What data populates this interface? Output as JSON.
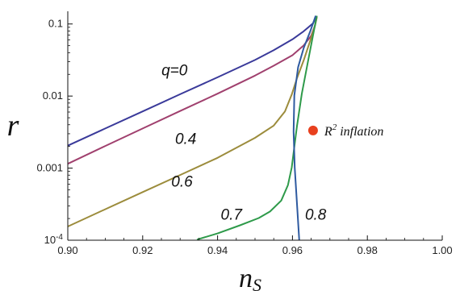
{
  "chart_data": {
    "type": "line",
    "title": "",
    "xlabel": "n",
    "xlabel_sub": "S",
    "ylabel": "r",
    "xlim": [
      0.9,
      1.0
    ],
    "ylim": [
      0.0001,
      0.15
    ],
    "y_scale": "log",
    "grid": false,
    "x_ticks": [
      {
        "value": 0.9,
        "label": "0.90"
      },
      {
        "value": 0.92,
        "label": "0.92"
      },
      {
        "value": 0.94,
        "label": "0.94"
      },
      {
        "value": 0.96,
        "label": "0.96"
      },
      {
        "value": 0.98,
        "label": "0.98"
      },
      {
        "value": 1.0,
        "label": "1.00"
      }
    ],
    "y_ticks": [
      {
        "value": 0.0001,
        "label": "10",
        "sup": "-4"
      },
      {
        "value": 0.001,
        "label": "0.001",
        "sup": ""
      },
      {
        "value": 0.01,
        "label": "0.01",
        "sup": ""
      },
      {
        "value": 0.1,
        "label": "0.1",
        "sup": ""
      }
    ],
    "series": [
      {
        "name": "q=0",
        "color": "#3a3a9a",
        "label": "q=0",
        "label_at": [
          0.9285,
          0.0193
        ],
        "points": [
          [
            0.9,
            0.00205
          ],
          [
            0.91,
            0.00355
          ],
          [
            0.92,
            0.00612
          ],
          [
            0.93,
            0.0106
          ],
          [
            0.94,
            0.0182
          ],
          [
            0.95,
            0.0317
          ],
          [
            0.955,
            0.0433
          ],
          [
            0.96,
            0.0613
          ],
          [
            0.963,
            0.0792
          ],
          [
            0.9655,
            0.1023
          ],
          [
            0.9665,
            0.128
          ]
        ]
      },
      {
        "name": "0.4",
        "color": "#a0406e",
        "label": "0.4",
        "label_at": [
          0.9315,
          0.00218
        ],
        "points": [
          [
            0.9,
            0.00115
          ],
          [
            0.91,
            0.00203
          ],
          [
            0.92,
            0.00355
          ],
          [
            0.93,
            0.0062
          ],
          [
            0.94,
            0.0108
          ],
          [
            0.95,
            0.0192
          ],
          [
            0.955,
            0.0264
          ],
          [
            0.96,
            0.0369
          ],
          [
            0.963,
            0.0504
          ],
          [
            0.965,
            0.0686
          ],
          [
            0.966,
            0.0943
          ],
          [
            0.9665,
            0.125
          ]
        ]
      },
      {
        "name": "0.6",
        "color": "#9c8c3c",
        "label": "0.6",
        "label_at": [
          0.9305,
          0.000555
        ],
        "points": [
          [
            0.9,
            0.000155
          ],
          [
            0.91,
            0.000269
          ],
          [
            0.92,
            0.000465
          ],
          [
            0.93,
            0.000804
          ],
          [
            0.94,
            0.00139
          ],
          [
            0.95,
            0.00263
          ],
          [
            0.955,
            0.00389
          ],
          [
            0.958,
            0.00612
          ],
          [
            0.9598,
            0.0105
          ],
          [
            0.9612,
            0.0177
          ],
          [
            0.963,
            0.0313
          ],
          [
            0.9648,
            0.06
          ],
          [
            0.966,
            0.0936
          ],
          [
            0.9665,
            0.125
          ]
        ]
      },
      {
        "name": "0.7",
        "color": "#2e9a4a",
        "label": "0.7",
        "label_at": [
          0.9437,
          0.000193
        ],
        "points": [
          [
            0.9345,
            0.000102
          ],
          [
            0.94,
            0.000124
          ],
          [
            0.946,
            0.000161
          ],
          [
            0.951,
            0.000203
          ],
          [
            0.954,
            0.00025
          ],
          [
            0.957,
            0.000355
          ],
          [
            0.9588,
            0.000582
          ],
          [
            0.9598,
            0.00102
          ],
          [
            0.9605,
            0.00197
          ],
          [
            0.9612,
            0.00383
          ],
          [
            0.9625,
            0.0108
          ],
          [
            0.964,
            0.0278
          ],
          [
            0.9655,
            0.0698
          ],
          [
            0.9665,
            0.13
          ]
        ]
      },
      {
        "name": "0.8",
        "color": "#2e5aa0",
        "label": "0.8",
        "label_at": [
          0.9662,
          0.000193
        ],
        "points": [
          [
            0.9618,
            0.0001
          ],
          [
            0.9612,
            0.00032
          ],
          [
            0.9606,
            0.00102
          ],
          [
            0.9603,
            0.00321
          ],
          [
            0.9605,
            0.0102
          ],
          [
            0.9615,
            0.0252
          ],
          [
            0.963,
            0.0464
          ],
          [
            0.9648,
            0.0806
          ],
          [
            0.9662,
            0.13
          ]
        ]
      }
    ],
    "annotations": [
      {
        "label": "R",
        "label_sup": "2",
        "label_suffix": " inflation",
        "x": 0.9655,
        "y": 0.00333,
        "color": "#e8401e"
      }
    ]
  }
}
